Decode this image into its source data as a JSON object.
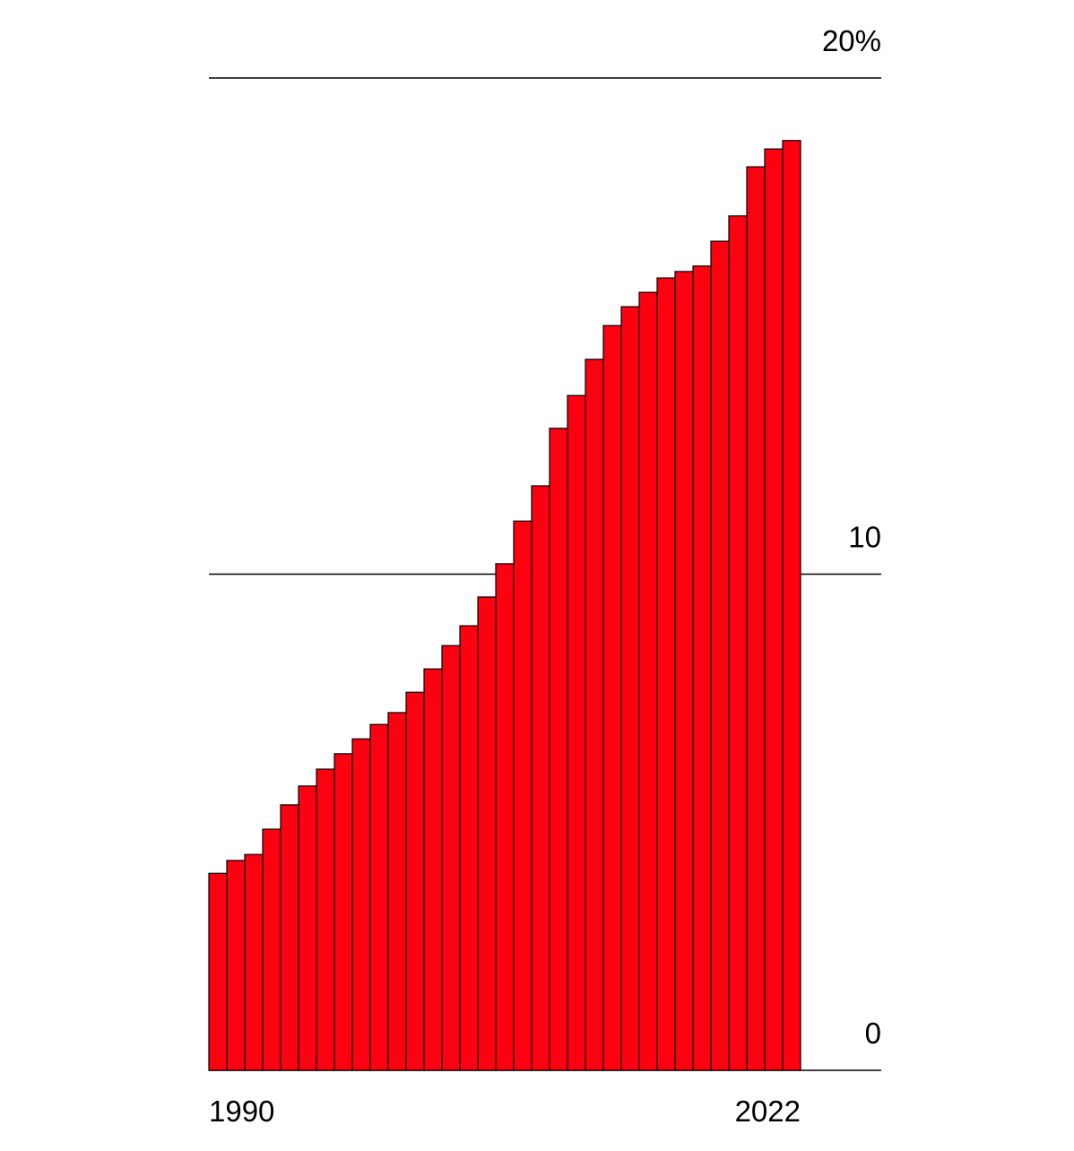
{
  "chart_data": {
    "type": "bar",
    "categories": [
      "1990",
      null,
      null,
      null,
      null,
      null,
      null,
      null,
      null,
      null,
      null,
      null,
      null,
      null,
      null,
      null,
      null,
      null,
      null,
      null,
      null,
      null,
      null,
      null,
      null,
      null,
      null,
      null,
      null,
      null,
      null,
      null,
      "2022"
    ],
    "values": [
      3.97,
      4.23,
      4.35,
      4.86,
      5.35,
      5.73,
      6.07,
      6.38,
      6.68,
      6.97,
      7.21,
      7.62,
      8.09,
      8.56,
      8.96,
      9.54,
      10.21,
      11.07,
      11.78,
      12.94,
      13.6,
      14.33,
      15.01,
      15.39,
      15.68,
      15.97,
      16.1,
      16.21,
      16.71,
      17.22,
      18.21,
      18.57,
      18.74
    ],
    "color": "#ff0010",
    "ylim": [
      0,
      20
    ],
    "yticks": [
      0,
      10,
      {
        "value": 20,
        "label": "20%"
      }
    ],
    "grid": true
  }
}
